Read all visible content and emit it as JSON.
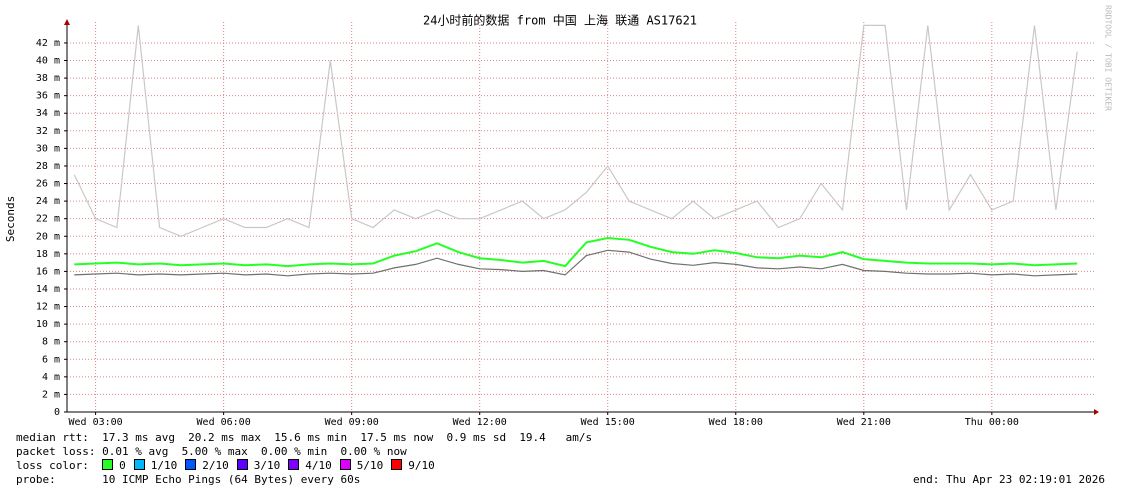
{
  "chart_data": {
    "type": "line",
    "title": "24小时前的数据 from 中国 上海 联通 AS17621",
    "y_label": "Seconds",
    "watermark": "RRDTOOL / TOBI OETIKER",
    "xlim": [
      2.33,
      26.3
    ],
    "xticks": [
      {
        "value": 3,
        "label": "Wed 03:00"
      },
      {
        "value": 6,
        "label": "Wed 06:00"
      },
      {
        "value": 9,
        "label": "Wed 09:00"
      },
      {
        "value": 12,
        "label": "Wed 12:00"
      },
      {
        "value": 15,
        "label": "Wed 15:00"
      },
      {
        "value": 18,
        "label": "Wed 18:00"
      },
      {
        "value": 21,
        "label": "Wed 21:00"
      },
      {
        "value": 24,
        "label": "Thu 00:00"
      }
    ],
    "ylim": [
      0,
      43.7
    ],
    "yticks": [
      0,
      {
        "value": 2,
        "label": "2 m"
      },
      {
        "value": 4,
        "label": "4 m"
      },
      {
        "value": 6,
        "label": "6 m"
      },
      {
        "value": 8,
        "label": "8 m"
      },
      {
        "value": 10,
        "label": "10 m"
      },
      {
        "value": 12,
        "label": "12 m"
      },
      {
        "value": 14,
        "label": "14 m"
      },
      {
        "value": 16,
        "label": "16 m"
      },
      {
        "value": 18,
        "label": "18 m"
      },
      {
        "value": 20,
        "label": "20 m"
      },
      {
        "value": 22,
        "label": "22 m"
      },
      {
        "value": 24,
        "label": "24 m"
      },
      {
        "value": 26,
        "label": "26 m"
      },
      {
        "value": 28,
        "label": "28 m"
      },
      {
        "value": 30,
        "label": "30 m"
      },
      {
        "value": 32,
        "label": "32 m"
      },
      {
        "value": 34,
        "label": "34 m"
      },
      {
        "value": 36,
        "label": "36 m"
      },
      {
        "value": 38,
        "label": "38 m"
      },
      {
        "value": 40,
        "label": "40 m"
      },
      {
        "value": 42,
        "label": "42 m"
      }
    ],
    "grid": true,
    "grid_color": "#e08080",
    "x": [
      2.5,
      3,
      3.5,
      4,
      4.5,
      5,
      5.5,
      6,
      6.5,
      7,
      7.5,
      8,
      8.5,
      9,
      9.5,
      10,
      10.5,
      11,
      11.5,
      12,
      12.5,
      13,
      13.5,
      14,
      14.5,
      15,
      15.5,
      16,
      16.5,
      17,
      17.5,
      18,
      18.5,
      19,
      19.5,
      20,
      20.5,
      21,
      21.5,
      22,
      22.5,
      23,
      23.5,
      24,
      24.5,
      25,
      25.5,
      26
    ],
    "series": [
      {
        "color": "#c8c8c8",
        "values": [
          27,
          22,
          21,
          44,
          21,
          20,
          21,
          22,
          21,
          21,
          22,
          21,
          40,
          22,
          21,
          23,
          22,
          23,
          22,
          22,
          23,
          24,
          22,
          23,
          25,
          28,
          24,
          23,
          22,
          24,
          22,
          23,
          24,
          21,
          22,
          26,
          23,
          44,
          44,
          23,
          44,
          23,
          27,
          23,
          24,
          44,
          23,
          41
        ]
      },
      {
        "color": "#707070",
        "values": [
          15.6,
          15.7,
          15.8,
          15.6,
          15.7,
          15.6,
          15.7,
          15.8,
          15.6,
          15.7,
          15.5,
          15.7,
          15.8,
          15.7,
          15.8,
          16.4,
          16.8,
          17.5,
          16.8,
          16.3,
          16.2,
          16,
          16.1,
          15.6,
          17.8,
          18.4,
          18.2,
          17.4,
          16.9,
          16.7,
          17,
          16.8,
          16.4,
          16.3,
          16.5,
          16.3,
          16.8,
          16.1,
          16,
          15.8,
          15.7,
          15.7,
          15.8,
          15.6,
          15.7,
          15.5,
          15.6,
          15.7
        ]
      },
      {
        "color": "#26ff26",
        "values": [
          16.8,
          16.9,
          17,
          16.8,
          16.9,
          16.7,
          16.8,
          16.9,
          16.7,
          16.8,
          16.6,
          16.8,
          16.9,
          16.8,
          16.9,
          17.8,
          18.3,
          19.2,
          18.2,
          17.5,
          17.3,
          17,
          17.2,
          16.6,
          19.3,
          19.8,
          19.6,
          18.8,
          18.2,
          18,
          18.4,
          18.1,
          17.6,
          17.5,
          17.8,
          17.6,
          18.2,
          17.4,
          17.2,
          17,
          16.9,
          16.9,
          16.9,
          16.8,
          16.9,
          16.7,
          16.8,
          16.9
        ]
      }
    ],
    "stats": [
      "median rtt:  17.3 ms avg  20.2 ms max  15.6 ms min  17.5 ms now  0.9 ms sd  19.4   am/s",
      "packet loss: 0.01 % avg  5.00 % max  0.00 % min  0.00 % now"
    ],
    "loss_title": "loss color:",
    "loss_colors": [
      {
        "label": "0",
        "color": "#26ff26"
      },
      {
        "label": "1/10",
        "color": "#00b8ff"
      },
      {
        "label": "2/10",
        "color": "#0059ff"
      },
      {
        "label": "3/10",
        "color": "#5e00ff"
      },
      {
        "label": "4/10",
        "color": "#7e00ff"
      },
      {
        "label": "5/10",
        "color": "#dd00ff"
      },
      {
        "label": "9/10",
        "color": "#ff0000"
      }
    ],
    "probe": "probe:       10 ICMP Echo Pings (64 Bytes) every 60s",
    "end": "end: Thu Apr 23 02:19:01 2026"
  }
}
